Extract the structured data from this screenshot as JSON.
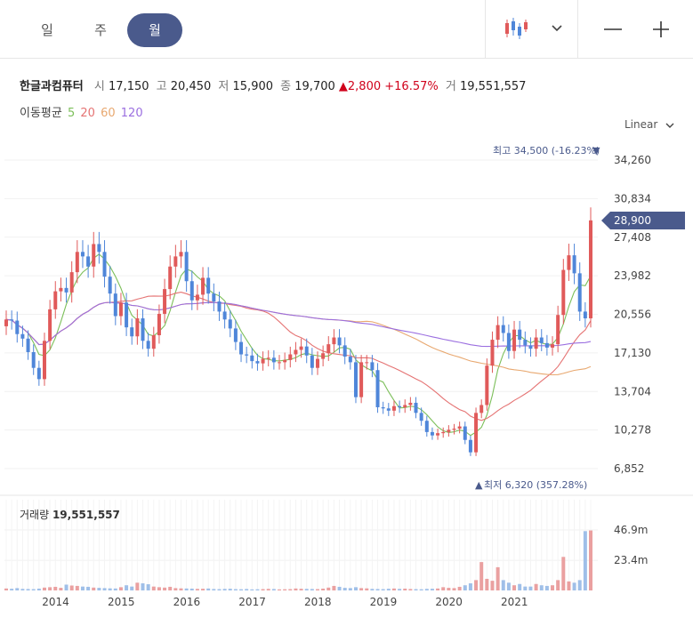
{
  "tabs": [
    {
      "label": "일",
      "active": false
    },
    {
      "label": "주",
      "active": false
    },
    {
      "label": "월",
      "active": true
    }
  ],
  "toolbar": {
    "chart_type_icon": "candlestick-icon",
    "dropdown_icon": "chevron-down-icon",
    "zoom_out_icon": "minus-icon",
    "zoom_in_icon": "plus-icon"
  },
  "stock": {
    "name": "한글과컴퓨터",
    "open_label": "시",
    "open": "17,150",
    "high_label": "고",
    "high": "20,450",
    "low_label": "저",
    "low": "15,900",
    "close_label": "종",
    "close": "19,700",
    "change_arrow": "▲",
    "change": "2,800",
    "change_pct": "+16.57%",
    "volume_label": "거",
    "volume": "19,551,557"
  },
  "moving_average": {
    "label": "이동평균",
    "periods": [
      {
        "value": "5",
        "color": "#7cbf5a"
      },
      {
        "value": "20",
        "color": "#e57373"
      },
      {
        "value": "60",
        "color": "#e8a870"
      },
      {
        "value": "120",
        "color": "#9b6fe0"
      }
    ]
  },
  "scale_selector": "Linear",
  "colors": {
    "up": "#d0021b",
    "up_candle": "#e05a5a",
    "down_candle": "#4f86d9",
    "accent": "#4a5a8c"
  },
  "chart_data": {
    "type": "candlestick",
    "y_ticks": [
      "34,260",
      "30,834",
      "27,408",
      "23,982",
      "20,556",
      "17,130",
      "13,704",
      "10,278",
      "6,852"
    ],
    "y_range": [
      6852,
      34260
    ],
    "x_ticks": [
      "2014",
      "2015",
      "2016",
      "2017",
      "2018",
      "2019",
      "2020",
      "2021"
    ],
    "last_price": "28,900",
    "max_note": "최고 34,500 (-16.23%)",
    "min_note": "최저 6,320 (357.28%)",
    "volume_label": "거래량",
    "volume_value": "19,551,557",
    "volume_ticks": [
      "46.9m",
      "23.4m"
    ],
    "close": [
      20100,
      20000,
      18800,
      18400,
      17200,
      15800,
      14800,
      18200,
      21000,
      22600,
      22900,
      22500,
      24300,
      26100,
      25700,
      24800,
      26800,
      26100,
      23900,
      22400,
      20400,
      21600,
      19400,
      18600,
      20200,
      18200,
      17500,
      18700,
      20600,
      22800,
      24800,
      25700,
      26100,
      23500,
      21800,
      22300,
      23800,
      22400,
      21700,
      20800,
      20100,
      19300,
      18100,
      17000,
      16900,
      16400,
      16200,
      16600,
      16700,
      16300,
      16300,
      16500,
      17000,
      17400,
      17700,
      16900,
      15800,
      16600,
      17100,
      17900,
      18500,
      17800,
      16800,
      16300,
      13200,
      16300,
      16300,
      15600,
      12300,
      12200,
      12000,
      12400,
      12300,
      12500,
      12700,
      11800,
      11100,
      10100,
      9800,
      10000,
      10100,
      10300,
      10400,
      10600,
      9400,
      8300,
      11800,
      12500,
      16000,
      18300,
      19600,
      18900,
      17300,
      19200,
      18300,
      17800,
      17500,
      18500,
      18000,
      17600,
      17900,
      20500,
      24500,
      25800,
      24200,
      20800,
      20200,
      28900
    ],
    "volume_scale_max": 46.9,
    "volume": [
      1.5,
      1.3,
      1.8,
      1.2,
      1.1,
      1.0,
      1.4,
      2.2,
      2.5,
      2.8,
      2.0,
      4.5,
      3.8,
      3.5,
      3.0,
      2.8,
      2.2,
      2.0,
      1.8,
      1.6,
      1.5,
      2.5,
      4.0,
      3.0,
      6.0,
      5.5,
      4.8,
      3.0,
      2.5,
      2.2,
      2.8,
      1.8,
      1.6,
      1.5,
      1.4,
      1.2,
      1.3,
      1.5,
      1.1,
      1.0,
      1.2,
      1.3,
      1.0,
      0.9,
      1.1,
      0.8,
      0.9,
      1.0,
      1.2,
      1.1,
      0.8,
      0.9,
      1.0,
      1.5,
      1.3,
      1.2,
      1.1,
      1.0,
      1.4,
      2.2,
      3.5,
      2.8,
      2.0,
      1.8,
      2.5,
      1.8,
      1.6,
      1.2,
      1.1,
      1.0,
      1.3,
      1.5,
      1.2,
      1.4,
      1.1,
      1.0,
      0.9,
      1.2,
      1.3,
      1.5,
      2.5,
      2.0,
      1.8,
      2.8,
      4.0,
      5.5,
      8.0,
      22.0,
      9.0,
      7.5,
      18.0,
      8.0,
      6.0,
      4.0,
      5.0,
      3.0,
      3.0,
      5.0,
      4.0,
      3.5,
      4.0,
      8.0,
      26.0,
      7.0,
      6.0,
      8.0,
      46.0,
      46.5
    ]
  }
}
